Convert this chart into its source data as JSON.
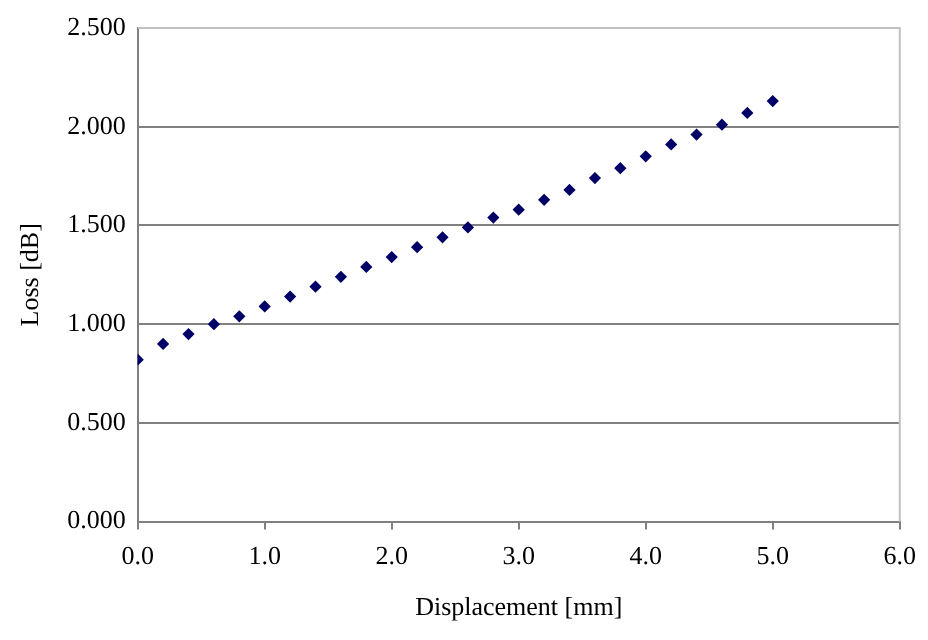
{
  "chart_data": {
    "type": "scatter",
    "xlabel": "Displacement [mm]",
    "ylabel": "Loss [dB]",
    "x": [
      0,
      0.2,
      0.4,
      0.6,
      0.8,
      1.0,
      1.2,
      1.4,
      1.6,
      1.8,
      2.0,
      2.2,
      2.4,
      2.6,
      2.8,
      3.0,
      3.2,
      3.4,
      3.6,
      3.8,
      4.0,
      4.2,
      4.4,
      4.6,
      4.8,
      5.0
    ],
    "series": [
      {
        "color": "#000066",
        "values": [
          0.82,
          0.9,
          0.95,
          1.0,
          1.04,
          1.09,
          1.14,
          1.19,
          1.24,
          1.29,
          1.34,
          1.39,
          1.44,
          1.49,
          1.54,
          1.58,
          1.63,
          1.68,
          1.74,
          1.79,
          1.85,
          1.91,
          1.96,
          2.01,
          2.07,
          2.13
        ]
      }
    ],
    "xlim": [
      0,
      6
    ],
    "ylim": [
      0,
      2.5
    ],
    "xticks": [
      {
        "value": 0,
        "label": "0.0"
      },
      {
        "value": 1,
        "label": "1.0"
      },
      {
        "value": 2,
        "label": "2.0"
      },
      {
        "value": 3,
        "label": "3.0"
      },
      {
        "value": 4,
        "label": "4.0"
      },
      {
        "value": 5,
        "label": "5.0"
      },
      {
        "value": 6,
        "label": "6.0"
      }
    ],
    "yticks": [
      {
        "value": 0,
        "label": "0.000"
      },
      {
        "value": 0.5,
        "label": "0.500"
      },
      {
        "value": 1,
        "label": "1.000"
      },
      {
        "value": 1.5,
        "label": "1.500"
      },
      {
        "value": 2,
        "label": "2.000"
      },
      {
        "value": 2.5,
        "label": "2.500"
      }
    ],
    "grid": "y",
    "legend": false,
    "marker": "diamond"
  }
}
